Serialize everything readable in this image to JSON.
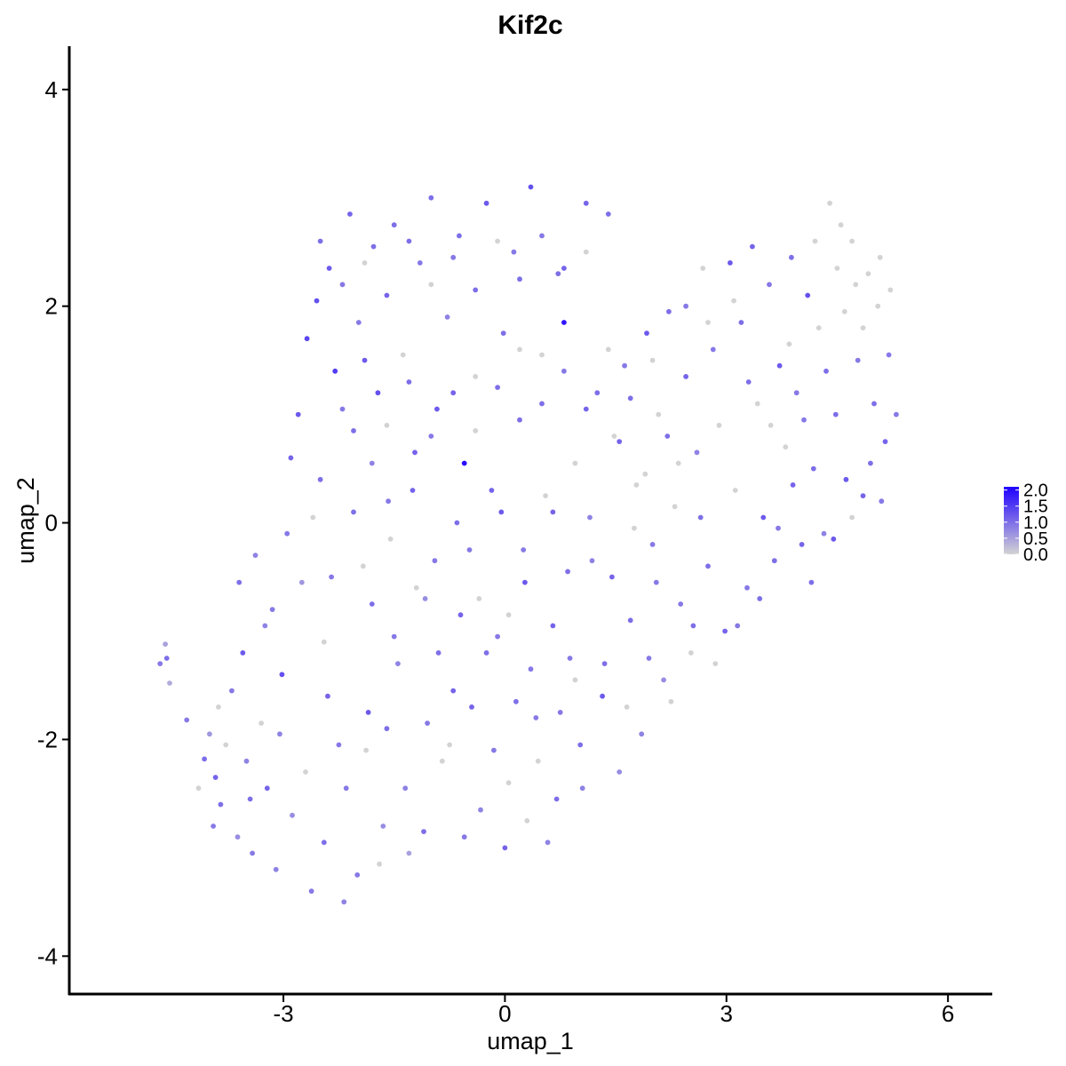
{
  "chart_data": {
    "type": "scatter",
    "title": "Kif2c",
    "xlabel": "umap_1",
    "ylabel": "umap_2",
    "xlim": [
      -5.9,
      6.6
    ],
    "ylim": [
      -4.35,
      4.4
    ],
    "x_ticks": [
      -3,
      0,
      3,
      6
    ],
    "x_tick_labels": [
      "-3",
      "0",
      "3",
      "6"
    ],
    "y_ticks": [
      4,
      2,
      0,
      -2,
      -4
    ],
    "y_tick_labels": [
      "4",
      "2",
      "0",
      "-2",
      "-4"
    ],
    "grid": false,
    "legend": {
      "placement": "right",
      "type": "colorbar",
      "low_color": "#d3d3d3",
      "high_color": "#1f00ff",
      "range": [
        0,
        2.1
      ],
      "tick_values": [
        2.0,
        1.5,
        1.0,
        0.5,
        0.0
      ],
      "tick_labels": [
        "2.0",
        "1.5",
        "1.0",
        "0.5",
        "0.0"
      ]
    },
    "point_color_low": "#d3d3d3",
    "point_color_high": "#1f00ff",
    "points": [
      [
        -4.67,
        -1.3,
        0.9
      ],
      [
        -4.6,
        -1.12,
        0.5
      ],
      [
        -4.58,
        -1.25,
        1.0
      ],
      [
        -4.54,
        -1.48,
        0.4
      ],
      [
        -4.31,
        -1.82,
        0.9
      ],
      [
        -4.07,
        -2.18,
        1.0
      ],
      [
        -4.0,
        -1.95,
        0.6
      ],
      [
        -3.92,
        -2.35,
        1.1
      ],
      [
        -3.85,
        -2.6,
        1.0
      ],
      [
        -3.78,
        -2.05,
        0.0
      ],
      [
        -3.7,
        -1.55,
        0.9
      ],
      [
        -3.62,
        -2.9,
        0.7
      ],
      [
        -3.55,
        -1.2,
        1.2
      ],
      [
        -3.5,
        -2.2,
        0.8
      ],
      [
        -3.42,
        -3.05,
        0.9
      ],
      [
        -3.38,
        -0.3,
        0.8
      ],
      [
        -3.3,
        -1.85,
        0.0
      ],
      [
        -3.22,
        -2.45,
        1.1
      ],
      [
        -3.15,
        -0.8,
        0.9
      ],
      [
        -3.1,
        -3.2,
        0.8
      ],
      [
        -3.02,
        -1.4,
        1.3
      ],
      [
        -2.95,
        -0.1,
        0.9
      ],
      [
        -2.88,
        -2.7,
        0.7
      ],
      [
        -2.8,
        1.0,
        1.2
      ],
      [
        -2.75,
        -0.55,
        0.6
      ],
      [
        -2.68,
        1.7,
        1.4
      ],
      [
        -2.62,
        -3.4,
        0.9
      ],
      [
        -2.55,
        2.05,
        1.3
      ],
      [
        -2.5,
        0.4,
        1.0
      ],
      [
        -2.45,
        -1.1,
        0.0
      ],
      [
        -2.38,
        2.35,
        1.2
      ],
      [
        -2.3,
        1.4,
        1.5
      ],
      [
        -2.25,
        -2.05,
        0.9
      ],
      [
        -2.18,
        -3.5,
        0.8
      ],
      [
        -2.1,
        2.85,
        1.1
      ],
      [
        -2.05,
        0.85,
        1.0
      ],
      [
        -1.98,
        1.85,
        0.9
      ],
      [
        -1.92,
        -0.4,
        0.0
      ],
      [
        -1.85,
        -1.75,
        1.2
      ],
      [
        -1.78,
        2.55,
        1.0
      ],
      [
        -1.72,
        1.2,
        1.3
      ],
      [
        -1.65,
        -2.8,
        0.7
      ],
      [
        -1.58,
        0.2,
        0.9
      ],
      [
        -1.5,
        2.75,
        1.0
      ],
      [
        -1.45,
        -1.3,
        0.8
      ],
      [
        -1.38,
        1.55,
        0.0
      ],
      [
        -1.3,
        -3.05,
        0.5
      ],
      [
        -1.22,
        0.65,
        1.1
      ],
      [
        -1.15,
        2.4,
        0.9
      ],
      [
        -1.08,
        -0.7,
        0.7
      ],
      [
        -1.0,
        3.0,
        1.0
      ],
      [
        -0.92,
        1.05,
        1.2
      ],
      [
        -0.85,
        -2.2,
        0.0
      ],
      [
        -0.78,
        1.9,
        0.8
      ],
      [
        -0.7,
        -1.55,
        1.1
      ],
      [
        -0.62,
        2.65,
        1.0
      ],
      [
        -0.55,
        0.55,
        2.0
      ],
      [
        -0.48,
        -0.25,
        0.9
      ],
      [
        -0.4,
        1.35,
        0.0
      ],
      [
        -0.33,
        -2.65,
        0.8
      ],
      [
        -0.25,
        2.95,
        1.2
      ],
      [
        -0.18,
        0.3,
        1.1
      ],
      [
        -0.1,
        -1.05,
        0.9
      ],
      [
        -0.02,
        1.75,
        1.0
      ],
      [
        0.05,
        -2.4,
        0.0
      ],
      [
        0.12,
        2.5,
        0.9
      ],
      [
        0.2,
        0.95,
        1.0
      ],
      [
        0.27,
        -0.55,
        1.2
      ],
      [
        0.35,
        3.1,
        1.3
      ],
      [
        0.42,
        -1.8,
        0.9
      ],
      [
        0.5,
        1.55,
        0.0
      ],
      [
        0.58,
        -2.95,
        0.8
      ],
      [
        0.65,
        0.1,
        1.1
      ],
      [
        0.72,
        2.3,
        1.0
      ],
      [
        0.8,
        1.85,
        1.9
      ],
      [
        0.88,
        -1.25,
        0.9
      ],
      [
        0.95,
        0.55,
        0.0
      ],
      [
        1.02,
        -2.05,
        1.0
      ],
      [
        1.1,
        2.95,
        1.1
      ],
      [
        1.18,
        -0.35,
        0.8
      ],
      [
        1.25,
        1.2,
        1.0
      ],
      [
        1.32,
        -1.6,
        1.2
      ],
      [
        1.4,
        2.85,
        1.0
      ],
      [
        1.48,
        0.8,
        0.0
      ],
      [
        1.55,
        -2.3,
        0.7
      ],
      [
        1.62,
        1.45,
        0.9
      ],
      [
        1.7,
        -0.9,
        1.0
      ],
      [
        1.78,
        0.35,
        0.0
      ],
      [
        1.85,
        -1.95,
        0.8
      ],
      [
        1.92,
        1.75,
        1.2
      ],
      [
        2.0,
        -0.2,
        0.9
      ],
      [
        2.08,
        1.0,
        0.0
      ],
      [
        2.15,
        -1.45,
        0.7
      ],
      [
        2.22,
        1.95,
        1.0
      ],
      [
        2.3,
        0.15,
        0.0
      ],
      [
        2.38,
        -0.75,
        0.9
      ],
      [
        2.45,
        1.35,
        1.1
      ],
      [
        2.52,
        -1.2,
        0.0
      ],
      [
        2.6,
        0.65,
        0.8
      ],
      [
        2.68,
        2.35,
        0.0
      ],
      [
        2.75,
        -0.4,
        1.0
      ],
      [
        2.82,
        1.6,
        0.9
      ],
      [
        2.9,
        0.9,
        0.0
      ],
      [
        2.98,
        -1.0,
        1.1
      ],
      [
        3.05,
        2.4,
        1.2
      ],
      [
        3.12,
        0.3,
        0.0
      ],
      [
        3.2,
        1.85,
        1.0
      ],
      [
        3.28,
        -0.6,
        0.9
      ],
      [
        3.35,
        2.55,
        1.1
      ],
      [
        3.42,
        1.1,
        0.0
      ],
      [
        3.5,
        0.05,
        1.2
      ],
      [
        3.58,
        2.2,
        0.9
      ],
      [
        3.65,
        -0.35,
        1.0
      ],
      [
        3.72,
        1.45,
        1.2
      ],
      [
        3.8,
        0.7,
        0.0
      ],
      [
        3.88,
        2.45,
        1.0
      ],
      [
        3.95,
        1.2,
        0.9
      ],
      [
        4.02,
        -0.2,
        1.1
      ],
      [
        4.1,
        2.1,
        1.3
      ],
      [
        4.18,
        0.5,
        1.0
      ],
      [
        4.25,
        1.8,
        0.0
      ],
      [
        4.32,
        -0.1,
        0.8
      ],
      [
        4.4,
        2.95,
        0.0
      ],
      [
        4.48,
        1.0,
        1.0
      ],
      [
        4.55,
        2.75,
        0.0
      ],
      [
        4.62,
        0.4,
        1.2
      ],
      [
        4.7,
        2.6,
        0.0
      ],
      [
        4.78,
        1.5,
        0.9
      ],
      [
        4.85,
        0.25,
        1.1
      ],
      [
        4.92,
        2.3,
        0.0
      ],
      [
        5.0,
        1.1,
        1.0
      ],
      [
        5.08,
        2.45,
        0.0
      ],
      [
        5.15,
        0.75,
        1.1
      ],
      [
        5.22,
        2.15,
        0.0
      ],
      [
        5.3,
        1.0,
        0.9
      ],
      [
        -3.88,
        -1.7,
        0.0
      ],
      [
        -3.45,
        -2.55,
        1.0
      ],
      [
        -3.05,
        -1.95,
        0.8
      ],
      [
        -2.7,
        -2.3,
        0.0
      ],
      [
        -2.4,
        -1.6,
        1.1
      ],
      [
        -2.15,
        -2.45,
        0.9
      ],
      [
        -1.88,
        -2.1,
        0.0
      ],
      [
        -1.6,
        -1.9,
        1.0
      ],
      [
        -1.35,
        -2.45,
        0.8
      ],
      [
        -1.05,
        -1.85,
        0.9
      ],
      [
        -0.75,
        -2.05,
        0.0
      ],
      [
        -0.45,
        -1.7,
        1.1
      ],
      [
        -0.15,
        -2.1,
        0.9
      ],
      [
        0.15,
        -1.65,
        1.0
      ],
      [
        0.45,
        -2.2,
        0.0
      ],
      [
        0.75,
        -1.75,
        0.9
      ],
      [
        1.05,
        -2.45,
        0.8
      ],
      [
        1.35,
        -1.3,
        1.0
      ],
      [
        1.65,
        -1.7,
        0.0
      ],
      [
        1.95,
        -1.25,
        0.9
      ],
      [
        2.25,
        -1.65,
        0.0
      ],
      [
        2.55,
        -0.95,
        1.0
      ],
      [
        2.85,
        -1.3,
        0.0
      ],
      [
        3.15,
        -0.95,
        0.9
      ],
      [
        3.45,
        -0.7,
        1.0
      ],
      [
        -2.9,
        0.6,
        1.1
      ],
      [
        -2.6,
        0.05,
        0.0
      ],
      [
        -2.35,
        -0.5,
        0.9
      ],
      [
        -2.05,
        0.1,
        1.0
      ],
      [
        -1.8,
        0.55,
        0.8
      ],
      [
        -1.55,
        -0.15,
        0.0
      ],
      [
        -1.25,
        0.3,
        1.1
      ],
      [
        -0.95,
        -0.35,
        0.9
      ],
      [
        -0.65,
        0.0,
        1.0
      ],
      [
        -0.35,
        -0.7,
        0.0
      ],
      [
        -0.05,
        0.1,
        1.2
      ],
      [
        0.25,
        -0.25,
        0.9
      ],
      [
        0.55,
        0.25,
        0.0
      ],
      [
        0.85,
        -0.45,
        1.0
      ],
      [
        1.15,
        0.05,
        0.8
      ],
      [
        1.45,
        -0.5,
        1.1
      ],
      [
        1.75,
        -0.05,
        0.0
      ],
      [
        2.05,
        -0.55,
        0.9
      ],
      [
        2.35,
        0.55,
        0.0
      ],
      [
        2.65,
        0.05,
        1.0
      ],
      [
        -2.2,
        1.05,
        0.9
      ],
      [
        -1.9,
        1.5,
        1.2
      ],
      [
        -1.6,
        0.9,
        0.0
      ],
      [
        -1.3,
        1.3,
        1.0
      ],
      [
        -1.0,
        0.8,
        0.9
      ],
      [
        -0.7,
        1.2,
        1.1
      ],
      [
        -0.4,
        0.85,
        0.0
      ],
      [
        -0.1,
        1.25,
        1.0
      ],
      [
        0.2,
        1.6,
        0.0
      ],
      [
        0.5,
        1.1,
        1.0
      ],
      [
        0.8,
        1.4,
        0.9
      ],
      [
        1.1,
        1.05,
        1.1
      ],
      [
        1.4,
        1.6,
        0.0
      ],
      [
        1.7,
        1.15,
        1.0
      ],
      [
        2.0,
        1.5,
        0.0
      ],
      [
        -2.5,
        2.6,
        1.0
      ],
      [
        -2.2,
        2.2,
        0.9
      ],
      [
        -1.9,
        2.4,
        0.0
      ],
      [
        -1.6,
        2.1,
        1.1
      ],
      [
        -1.3,
        2.6,
        1.0
      ],
      [
        -1.0,
        2.2,
        0.0
      ],
      [
        -0.7,
        2.45,
        0.9
      ],
      [
        -0.4,
        2.15,
        1.0
      ],
      [
        -0.1,
        2.6,
        0.0
      ],
      [
        0.2,
        2.25,
        1.0
      ],
      [
        0.5,
        2.65,
        0.9
      ],
      [
        0.8,
        2.35,
        1.1
      ],
      [
        1.1,
        2.5,
        0.0
      ],
      [
        -3.25,
        -0.95,
        0.8
      ],
      [
        -3.6,
        -0.55,
        1.0
      ],
      [
        -3.95,
        -2.8,
        0.9
      ],
      [
        -4.15,
        -2.45,
        0.0
      ],
      [
        -2.45,
        -2.95,
        1.0
      ],
      [
        -2.0,
        -3.25,
        0.9
      ],
      [
        -1.7,
        -3.15,
        0.0
      ],
      [
        -1.1,
        -2.85,
        1.0
      ],
      [
        -0.55,
        -2.9,
        0.9
      ],
      [
        0.0,
        -3.0,
        1.1
      ],
      [
        0.3,
        -2.75,
        0.0
      ],
      [
        0.7,
        -2.55,
        1.0
      ],
      [
        3.7,
        -0.05,
        0.9
      ],
      [
        3.9,
        0.35,
        1.1
      ],
      [
        4.15,
        -0.55,
        1.0
      ],
      [
        4.45,
        -0.15,
        1.2
      ],
      [
        4.7,
        0.05,
        0.0
      ],
      [
        4.95,
        0.55,
        1.0
      ],
      [
        5.1,
        0.2,
        0.9
      ],
      [
        3.1,
        2.05,
        0.0
      ],
      [
        3.3,
        1.3,
        1.0
      ],
      [
        3.6,
        0.9,
        0.0
      ],
      [
        3.85,
        1.65,
        0.0
      ],
      [
        4.05,
        0.95,
        0.9
      ],
      [
        4.35,
        1.4,
        1.0
      ],
      [
        4.6,
        1.95,
        0.0
      ],
      [
        4.85,
        1.8,
        0.0
      ],
      [
        5.05,
        2.0,
        0.0
      ],
      [
        5.2,
        1.55,
        0.9
      ],
      [
        4.5,
        2.35,
        0.0
      ],
      [
        4.2,
        2.6,
        0.0
      ],
      [
        4.75,
        2.2,
        0.0
      ],
      [
        2.45,
        2.0,
        0.9
      ],
      [
        2.75,
        1.85,
        0.0
      ],
      [
        2.2,
        0.8,
        1.0
      ],
      [
        1.9,
        0.45,
        0.0
      ],
      [
        1.55,
        0.75,
        1.1
      ],
      [
        -0.25,
        -1.2,
        1.0
      ],
      [
        0.05,
        -0.85,
        0.0
      ],
      [
        0.35,
        -1.35,
        0.9
      ],
      [
        0.65,
        -0.95,
        1.1
      ],
      [
        0.95,
        -1.45,
        0.0
      ],
      [
        -1.8,
        -0.75,
        1.0
      ],
      [
        -1.5,
        -1.05,
        0.9
      ],
      [
        -1.2,
        -0.6,
        0.0
      ],
      [
        -0.9,
        -1.2,
        1.0
      ],
      [
        -0.6,
        -0.85,
        1.1
      ]
    ]
  }
}
